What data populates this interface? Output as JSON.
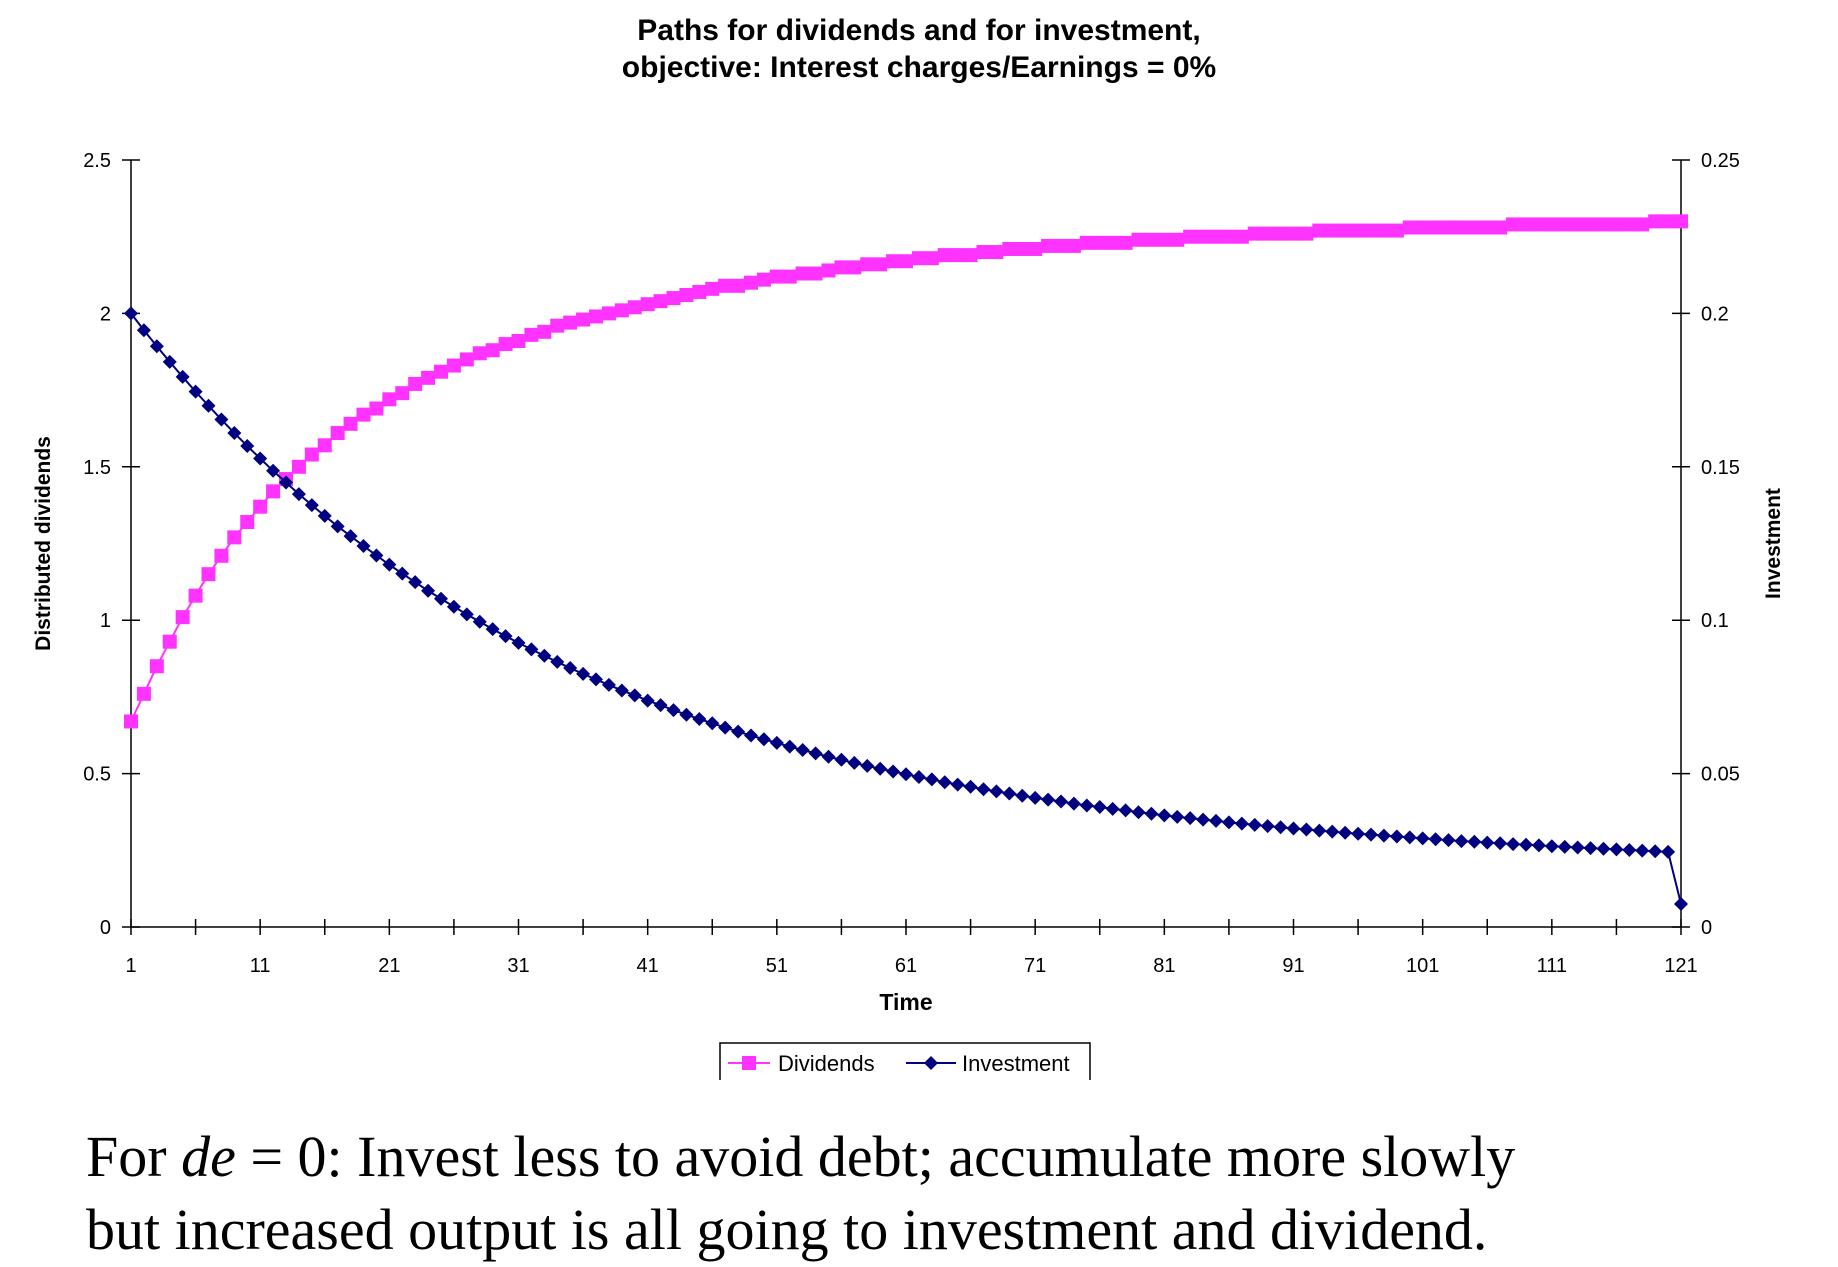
{
  "chart_data": {
    "type": "line",
    "title": [
      "Paths for dividends and for investment,",
      "objective: Interest charges/Earnings = 0%"
    ],
    "xlabel": "Time",
    "ylabel": "Distributed dividends",
    "y2label": "Investment",
    "x_range": [
      1,
      121
    ],
    "x_ticks": [
      1,
      11,
      21,
      31,
      41,
      51,
      61,
      71,
      81,
      91,
      101,
      111,
      121
    ],
    "y_left_range": [
      0,
      2.5
    ],
    "y_left_ticks": [
      "0",
      "0.5",
      "1",
      "1.5",
      "2",
      "2.5"
    ],
    "y_right_range": [
      0,
      0.25
    ],
    "y_right_ticks": [
      "0",
      "0.05",
      "0.1",
      "0.15",
      "0.2",
      "0.25"
    ],
    "grid": false,
    "legend_position": "bottom",
    "series": [
      {
        "name": "Dividends",
        "axis": "left",
        "color": "#FF33FF",
        "marker": "square",
        "x": [
          1,
          2,
          3,
          4,
          5,
          6,
          7,
          8,
          9,
          10,
          11,
          12,
          13,
          14,
          15,
          16,
          17,
          18,
          19,
          20,
          21,
          22,
          23,
          24,
          25,
          26,
          27,
          28,
          29,
          30,
          31,
          32,
          33,
          34,
          35,
          36,
          37,
          38,
          39,
          40,
          41,
          42,
          43,
          44,
          45,
          46,
          47,
          48,
          49,
          50,
          51,
          52,
          53,
          54,
          55,
          56,
          57,
          58,
          59,
          60,
          61,
          62,
          63,
          64,
          65,
          66,
          67,
          68,
          69,
          70,
          71,
          72,
          73,
          74,
          75,
          76,
          77,
          78,
          79,
          80,
          81,
          82,
          83,
          84,
          85,
          86,
          87,
          88,
          89,
          90,
          91,
          92,
          93,
          94,
          95,
          96,
          97,
          98,
          99,
          100,
          101,
          102,
          103,
          104,
          105,
          106,
          107,
          108,
          109,
          110,
          111,
          112,
          113,
          114,
          115,
          116,
          117,
          118,
          119,
          120,
          121
        ],
        "values": [
          0.67,
          0.76,
          0.85,
          0.93,
          1.01,
          1.08,
          1.15,
          1.21,
          1.27,
          1.32,
          1.37,
          1.42,
          1.46,
          1.5,
          1.54,
          1.57,
          1.61,
          1.64,
          1.67,
          1.69,
          1.72,
          1.74,
          1.77,
          1.79,
          1.81,
          1.83,
          1.85,
          1.87,
          1.88,
          1.9,
          1.91,
          1.93,
          1.94,
          1.96,
          1.97,
          1.98,
          1.99,
          2.0,
          2.01,
          2.02,
          2.03,
          2.04,
          2.05,
          2.06,
          2.07,
          2.08,
          2.09,
          2.09,
          2.1,
          2.11,
          2.12,
          2.12,
          2.13,
          2.13,
          2.14,
          2.15,
          2.15,
          2.16,
          2.16,
          2.17,
          2.17,
          2.18,
          2.18,
          2.19,
          2.19,
          2.19,
          2.2,
          2.2,
          2.21,
          2.21,
          2.21,
          2.22,
          2.22,
          2.22,
          2.23,
          2.23,
          2.23,
          2.23,
          2.24,
          2.24,
          2.24,
          2.24,
          2.25,
          2.25,
          2.25,
          2.25,
          2.25,
          2.26,
          2.26,
          2.26,
          2.26,
          2.26,
          2.27,
          2.27,
          2.27,
          2.27,
          2.27,
          2.27,
          2.27,
          2.28,
          2.28,
          2.28,
          2.28,
          2.28,
          2.28,
          2.28,
          2.28,
          2.29,
          2.29,
          2.29,
          2.29,
          2.29,
          2.29,
          2.29,
          2.29,
          2.29,
          2.29,
          2.29,
          2.3,
          2.3,
          2.3
        ]
      },
      {
        "name": "Investment",
        "axis": "right",
        "color": "#000080",
        "marker": "diamond",
        "x": [
          1,
          2,
          3,
          4,
          5,
          6,
          7,
          8,
          9,
          10,
          11,
          12,
          13,
          14,
          15,
          16,
          17,
          18,
          19,
          20,
          21,
          22,
          23,
          24,
          25,
          26,
          27,
          28,
          29,
          30,
          31,
          32,
          33,
          34,
          35,
          36,
          37,
          38,
          39,
          40,
          41,
          42,
          43,
          44,
          45,
          46,
          47,
          48,
          49,
          50,
          51,
          52,
          53,
          54,
          55,
          56,
          57,
          58,
          59,
          60,
          61,
          62,
          63,
          64,
          65,
          66,
          67,
          68,
          69,
          70,
          71,
          72,
          73,
          74,
          75,
          76,
          77,
          78,
          79,
          80,
          81,
          82,
          83,
          84,
          85,
          86,
          87,
          88,
          89,
          90,
          91,
          92,
          93,
          94,
          95,
          96,
          97,
          98,
          99,
          100,
          101,
          102,
          103,
          104,
          105,
          106,
          107,
          108,
          109,
          110,
          111,
          112,
          113,
          114,
          115,
          116,
          117,
          118,
          119,
          120,
          121
        ],
        "values": [
          0.2,
          0.1945,
          0.1893,
          0.1842,
          0.1793,
          0.1745,
          0.1699,
          0.1654,
          0.161,
          0.1568,
          0.1527,
          0.1487,
          0.1449,
          0.1411,
          0.1375,
          0.134,
          0.1306,
          0.1274,
          0.1242,
          0.1211,
          0.1181,
          0.1152,
          0.1124,
          0.1096,
          0.107,
          0.1044,
          0.1019,
          0.0995,
          0.0971,
          0.0948,
          0.0926,
          0.0905,
          0.0884,
          0.0864,
          0.0844,
          0.0825,
          0.0807,
          0.0789,
          0.0771,
          0.0755,
          0.0738,
          0.0723,
          0.0707,
          0.0692,
          0.0678,
          0.0664,
          0.065,
          0.0637,
          0.0624,
          0.0612,
          0.06,
          0.0588,
          0.0577,
          0.0566,
          0.0555,
          0.0545,
          0.0535,
          0.0525,
          0.0516,
          0.0507,
          0.0498,
          0.0489,
          0.0481,
          0.0472,
          0.0464,
          0.0457,
          0.0449,
          0.0442,
          0.0435,
          0.0428,
          0.0421,
          0.0415,
          0.0409,
          0.0402,
          0.0396,
          0.0391,
          0.0385,
          0.038,
          0.0374,
          0.0369,
          0.0364,
          0.0359,
          0.0355,
          0.035,
          0.0346,
          0.0341,
          0.0337,
          0.0333,
          0.0329,
          0.0325,
          0.0321,
          0.0318,
          0.0314,
          0.0311,
          0.0307,
          0.0304,
          0.0301,
          0.0298,
          0.0295,
          0.0292,
          0.0289,
          0.0286,
          0.0283,
          0.028,
          0.0278,
          0.0275,
          0.0273,
          0.027,
          0.0268,
          0.0266,
          0.0263,
          0.0261,
          0.0259,
          0.0257,
          0.0255,
          0.0253,
          0.0251,
          0.0249,
          0.0247,
          0.0245,
          0.0075
        ]
      }
    ]
  },
  "caption": {
    "line1_prefix": "For ",
    "line1_math_var": "de",
    "line1_math_rest": " = 0",
    "line1_text": ": Invest less to avoid debt; accumulate more slowly",
    "line2_text": "but increased output is all going to investment and dividend."
  }
}
